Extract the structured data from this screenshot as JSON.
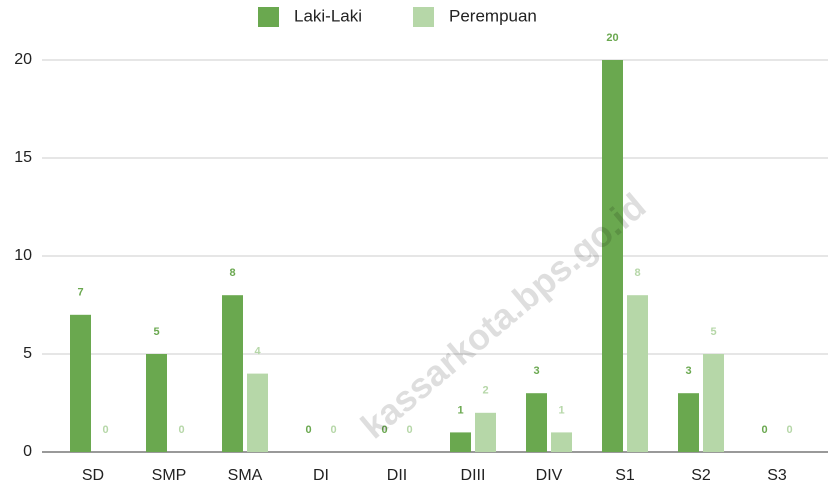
{
  "chart_data": {
    "type": "bar",
    "categories": [
      "SD",
      "SMP",
      "SMA",
      "DI",
      "DII",
      "DIII",
      "DIV",
      "S1",
      "S2",
      "S3"
    ],
    "series": [
      {
        "name": "Laki-Laki",
        "color": "#6aa84f",
        "values": [
          7,
          5,
          8,
          0,
          0,
          1,
          3,
          20,
          3,
          0
        ]
      },
      {
        "name": "Perempuan",
        "color": "#b6d7a8",
        "values": [
          0,
          0,
          4,
          0,
          0,
          2,
          1,
          8,
          5,
          0
        ]
      }
    ],
    "ylim": [
      0,
      20
    ],
    "yticks": [
      0,
      5,
      10,
      15,
      20
    ],
    "grid": true,
    "legend": "top",
    "watermark": "kassarkota.bps.go.id"
  }
}
